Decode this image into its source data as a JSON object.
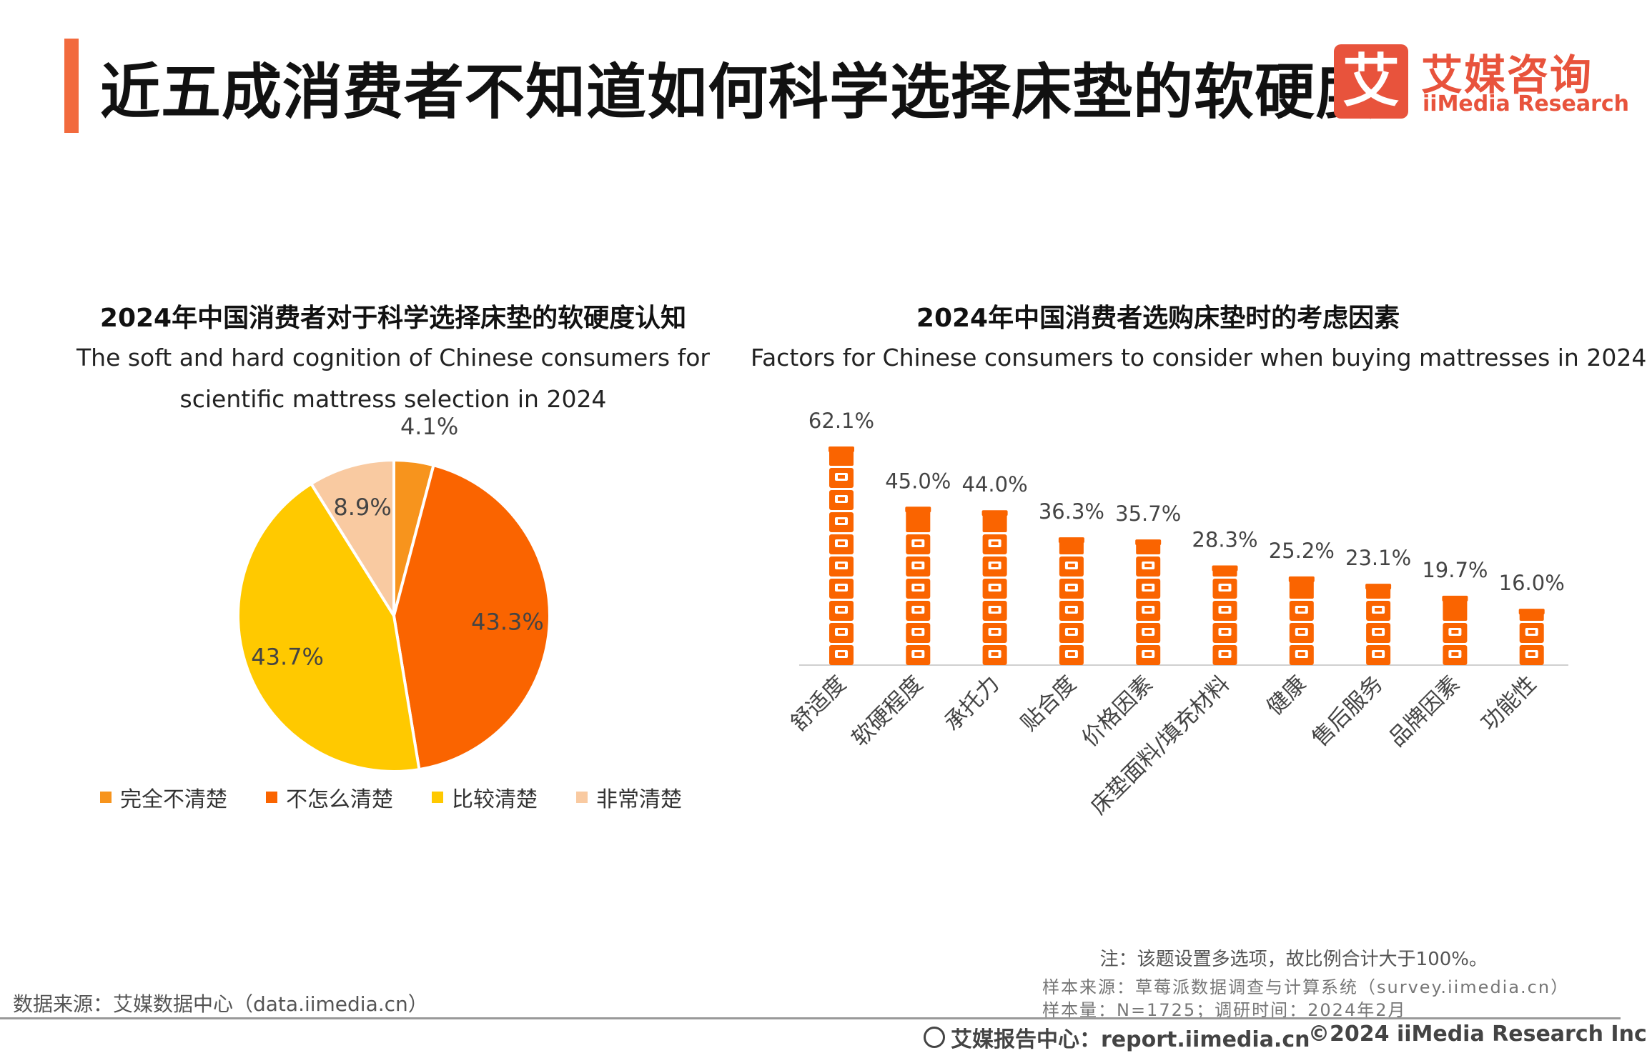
{
  "header": {
    "title": "近五成消费者不知道如何科学选择床垫的软硬度",
    "logo_cn": "艾媒咨询",
    "logo_en": "iiMedia Research",
    "logo_mark": "艾"
  },
  "colors": {
    "accent": "#f26a3d",
    "bar": "#fa6400",
    "pie": [
      "#f7941d",
      "#fa6400",
      "#ffc900",
      "#f9caa1"
    ]
  },
  "chart_data": [
    {
      "type": "pie",
      "title": "2024年中国消费者对于科学选择床垫的软硬度认知",
      "subtitle": "The soft and hard cognition of Chinese consumers for scientific mattress selection in 2024",
      "categories": [
        "完全不清楚",
        "不怎么清楚",
        "比较清楚",
        "非常清楚"
      ],
      "values": [
        4.1,
        43.3,
        43.7,
        8.9
      ],
      "labels": [
        "4.1%",
        "43.3%",
        "43.7%",
        "8.9%"
      ],
      "legend": "bottom"
    },
    {
      "type": "bar",
      "title": "2024年中国消费者选购床垫时的考虑因素",
      "subtitle": "Factors for Chinese consumers to consider when buying mattresses in 2024",
      "categories": [
        "舒适度",
        "软硬程度",
        "承托力",
        "贴合度",
        "价格因素",
        "床垫面料/填充材料",
        "健康",
        "售后服务",
        "品牌因素",
        "功能性"
      ],
      "values": [
        62.1,
        45.0,
        44.0,
        36.3,
        35.7,
        28.3,
        25.2,
        23.1,
        19.7,
        16.0
      ],
      "labels": [
        "62.1%",
        "45.0%",
        "44.0%",
        "36.3%",
        "35.7%",
        "28.3%",
        "25.2%",
        "23.1%",
        "19.7%",
        "16.0%"
      ],
      "ylim": [
        0,
        70
      ],
      "grid": false
    }
  ],
  "footer": {
    "note": "注：该题设置多选项，故比例合计大于100%。",
    "sample_source": "样本来源：草莓派数据调查与计算系统（survey.iimedia.cn）",
    "sample_size": "样本量：N=1725；调研时间：2024年2月",
    "data_source": "数据来源：艾媒数据中心（data.iimedia.cn）",
    "report_center": "艾媒报告中心：report.iimedia.cn",
    "copyright": "©2024  iiMedia Research  Inc"
  }
}
